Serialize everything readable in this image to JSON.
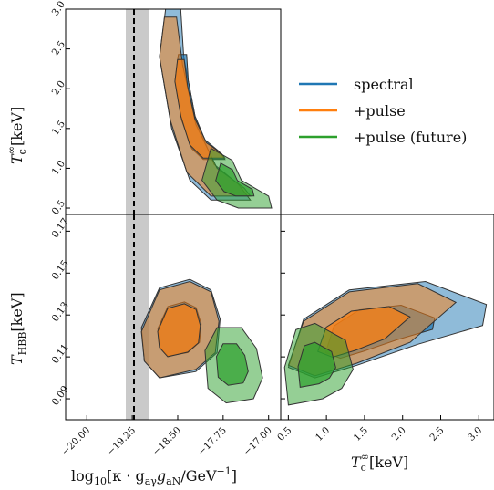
{
  "colors": {
    "spectral": "#1f77b4",
    "pulse": "#ff7f0e",
    "future": "#2ca02c",
    "band": "#bdbdbd",
    "edge": "#333333"
  },
  "legend": {
    "placement": "right-of-top-panel",
    "entries": [
      {
        "label": "spectral",
        "color": "#1f77b4"
      },
      {
        "label": "+pulse",
        "color": "#ff7f0e"
      },
      {
        "label": "+pulse (future)",
        "color": "#2ca02c"
      }
    ]
  },
  "chart_data": [
    {
      "type": "contour",
      "panel": "top-left",
      "ylabel": "T_c^∞[keV]",
      "ylim": [
        0.42,
        3.0
      ],
      "yticks": [
        "0.5",
        "1.0",
        "1.5",
        "2.0",
        "2.5",
        "3.0"
      ],
      "xlim": [
        -20.35,
        -16.8
      ],
      "reference_line_x": -19.25,
      "band_x": [
        -19.35,
        -19.05
      ],
      "series": [
        {
          "name": "spectral",
          "approx_outer_contour": [
            [
              -18.7,
              3.0
            ],
            [
              -18.45,
              3.0
            ],
            [
              -18.4,
              2.4
            ],
            [
              -18.2,
              1.6
            ],
            [
              -17.9,
              1.05
            ],
            [
              -17.5,
              0.8
            ],
            [
              -17.3,
              0.6
            ],
            [
              -17.95,
              0.6
            ],
            [
              -18.3,
              0.85
            ],
            [
              -18.6,
              1.5
            ],
            [
              -18.8,
              2.4
            ],
            [
              -18.7,
              3.0
            ]
          ]
        },
        {
          "name": "+pulse",
          "approx_outer_contour": [
            [
              -18.72,
              2.9
            ],
            [
              -18.52,
              2.9
            ],
            [
              -18.42,
              2.3
            ],
            [
              -18.2,
              1.55
            ],
            [
              -17.85,
              1.0
            ],
            [
              -17.4,
              0.75
            ],
            [
              -17.3,
              0.65
            ],
            [
              -17.95,
              0.65
            ],
            [
              -18.35,
              0.95
            ],
            [
              -18.62,
              1.6
            ],
            [
              -18.8,
              2.4
            ],
            [
              -18.72,
              2.9
            ]
          ]
        },
        {
          "name": "+pulse (future)",
          "approx_outer_contour": [
            [
              -17.95,
              1.25
            ],
            [
              -17.6,
              1.1
            ],
            [
              -17.45,
              0.85
            ],
            [
              -17.0,
              0.65
            ],
            [
              -16.95,
              0.5
            ],
            [
              -17.5,
              0.5
            ],
            [
              -17.85,
              0.6
            ],
            [
              -18.1,
              0.85
            ],
            [
              -17.95,
              1.25
            ]
          ]
        }
      ]
    },
    {
      "type": "contour",
      "panel": "bottom-left",
      "xlabel": "log10[κ · g_aγ g_aN/GeV^-1]",
      "ylabel": "T_HBB[keV]",
      "xlim": [
        -20.35,
        -16.8
      ],
      "xticks": [
        "−20.00",
        "−19.25",
        "−18.50",
        "−17.75",
        "−17.00"
      ],
      "ylim": [
        0.08,
        0.178
      ],
      "yticks": [
        "0.09",
        "0.11",
        "0.13",
        "0.15",
        "0.17"
      ],
      "reference_line_x": -19.25,
      "band_x": [
        -19.35,
        -19.05
      ],
      "series": [
        {
          "name": "spectral",
          "approx_outer_contour": [
            [
              -19.1,
              0.124
            ],
            [
              -18.8,
              0.143
            ],
            [
              -18.3,
              0.147
            ],
            [
              -17.95,
              0.142
            ],
            [
              -17.8,
              0.128
            ],
            [
              -17.85,
              0.112
            ],
            [
              -18.2,
              0.103
            ],
            [
              -18.8,
              0.1
            ],
            [
              -19.05,
              0.108
            ],
            [
              -19.1,
              0.124
            ]
          ]
        },
        {
          "name": "+pulse",
          "approx_outer_contour": [
            [
              -19.1,
              0.122
            ],
            [
              -18.8,
              0.142
            ],
            [
              -18.3,
              0.146
            ],
            [
              -17.95,
              0.141
            ],
            [
              -17.82,
              0.127
            ],
            [
              -17.88,
              0.112
            ],
            [
              -18.2,
              0.104
            ],
            [
              -18.8,
              0.1
            ],
            [
              -19.05,
              0.108
            ],
            [
              -19.1,
              0.122
            ]
          ]
        },
        {
          "name": "+pulse (future)",
          "approx_outer_contour": [
            [
              -18.05,
              0.113
            ],
            [
              -17.85,
              0.124
            ],
            [
              -17.45,
              0.124
            ],
            [
              -17.2,
              0.114
            ],
            [
              -17.1,
              0.1
            ],
            [
              -17.25,
              0.09
            ],
            [
              -17.7,
              0.088
            ],
            [
              -18.0,
              0.095
            ],
            [
              -18.05,
              0.113
            ]
          ]
        }
      ]
    },
    {
      "type": "contour",
      "panel": "bottom-right",
      "xlabel": "T_c^∞[keV]",
      "xlim": [
        0.4,
        3.2
      ],
      "xticks": [
        "0.5",
        "1.0",
        "1.5",
        "2.0",
        "2.5",
        "3.0"
      ],
      "ylim": [
        0.08,
        0.178
      ],
      "series": [
        {
          "name": "spectral",
          "approx_outer_contour": [
            [
              0.5,
              0.105
            ],
            [
              0.7,
              0.128
            ],
            [
              1.3,
              0.142
            ],
            [
              2.3,
              0.146
            ],
            [
              3.1,
              0.135
            ],
            [
              3.05,
              0.125
            ],
            [
              2.2,
              0.116
            ],
            [
              1.4,
              0.106
            ],
            [
              0.85,
              0.1
            ],
            [
              0.5,
              0.105
            ]
          ]
        },
        {
          "name": "+pulse",
          "approx_outer_contour": [
            [
              0.5,
              0.106
            ],
            [
              0.7,
              0.127
            ],
            [
              1.3,
              0.141
            ],
            [
              2.2,
              0.145
            ],
            [
              2.7,
              0.136
            ],
            [
              2.1,
              0.117
            ],
            [
              1.4,
              0.107
            ],
            [
              0.85,
              0.101
            ],
            [
              0.5,
              0.106
            ]
          ]
        },
        {
          "name": "+pulse (future)",
          "approx_outer_contour": [
            [
              0.45,
              0.105
            ],
            [
              0.6,
              0.123
            ],
            [
              0.85,
              0.126
            ],
            [
              1.25,
              0.118
            ],
            [
              1.35,
              0.104
            ],
            [
              1.2,
              0.095
            ],
            [
              0.95,
              0.09
            ],
            [
              0.5,
              0.087
            ],
            [
              0.45,
              0.105
            ]
          ]
        }
      ]
    }
  ],
  "labels": {
    "top_ylabel": "T",
    "top_ylabel_sub": "c",
    "top_ylabel_sup": "∞",
    "top_ylabel_unit": "[keV]",
    "bl_ylabel": "T",
    "bl_ylabel_sub": "HBB",
    "bl_ylabel_unit": "[keV]",
    "bl_xlabel_pre": "log",
    "bl_xlabel_sub": "10",
    "bl_xlabel_main": "[κ · g",
    "bl_xlabel_sub2": "aγ",
    "bl_xlabel_mid": "g",
    "bl_xlabel_sub3": "aN",
    "bl_xlabel_unit": "/GeV",
    "bl_xlabel_sup": "−1",
    "bl_xlabel_close": "]",
    "br_xlabel": "T",
    "br_xlabel_sub": "c",
    "br_xlabel_sup": "∞",
    "br_xlabel_unit": "[keV]"
  }
}
